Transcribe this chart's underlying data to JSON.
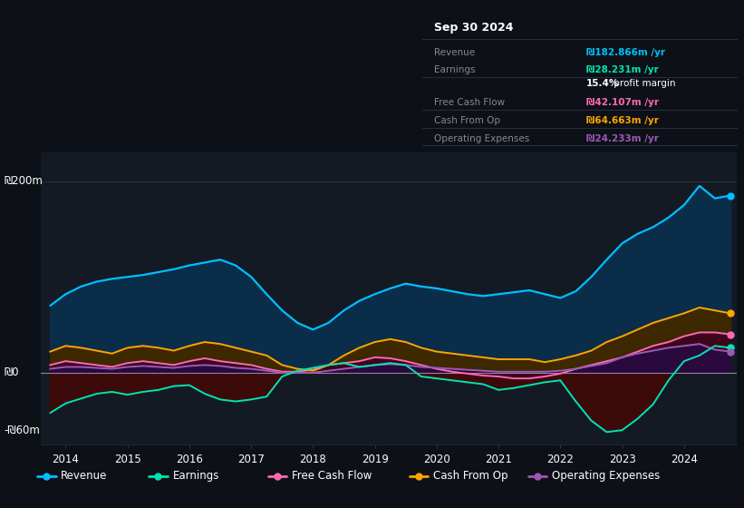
{
  "bg_color": "#0d1117",
  "plot_bg_color": "#131a24",
  "grid_color": "#2a3340",
  "ylim": [
    -75,
    230
  ],
  "xlim": [
    2013.6,
    2024.85
  ],
  "ytick_positions": [
    -60,
    0,
    200
  ],
  "ytick_labels": [
    "-₪60m",
    "₪0",
    "₪200m"
  ],
  "xtick_positions": [
    2014,
    2015,
    2016,
    2017,
    2018,
    2019,
    2020,
    2021,
    2022,
    2023,
    2024
  ],
  "years": [
    2013.75,
    2014.0,
    2014.25,
    2014.5,
    2014.75,
    2015.0,
    2015.25,
    2015.5,
    2015.75,
    2016.0,
    2016.25,
    2016.5,
    2016.75,
    2017.0,
    2017.25,
    2017.5,
    2017.75,
    2018.0,
    2018.25,
    2018.5,
    2018.75,
    2019.0,
    2019.25,
    2019.5,
    2019.75,
    2020.0,
    2020.25,
    2020.5,
    2020.75,
    2021.0,
    2021.25,
    2021.5,
    2021.75,
    2022.0,
    2022.25,
    2022.5,
    2022.75,
    2023.0,
    2023.25,
    2023.5,
    2023.75,
    2024.0,
    2024.25,
    2024.5,
    2024.75
  ],
  "revenue": [
    70,
    82,
    90,
    95,
    98,
    100,
    102,
    105,
    108,
    112,
    115,
    118,
    112,
    100,
    82,
    65,
    52,
    45,
    52,
    65,
    75,
    82,
    88,
    93,
    90,
    88,
    85,
    82,
    80,
    82,
    84,
    86,
    82,
    78,
    85,
    100,
    118,
    135,
    145,
    152,
    162,
    175,
    195,
    182,
    185
  ],
  "earnings": [
    -42,
    -32,
    -27,
    -22,
    -20,
    -23,
    -20,
    -18,
    -14,
    -13,
    -22,
    -28,
    -30,
    -28,
    -25,
    -4,
    2,
    5,
    8,
    10,
    6,
    8,
    10,
    8,
    -4,
    -6,
    -8,
    -10,
    -12,
    -18,
    -16,
    -13,
    -10,
    -8,
    -30,
    -50,
    -62,
    -60,
    -48,
    -33,
    -8,
    12,
    18,
    28,
    26
  ],
  "cash_from_op": [
    22,
    28,
    26,
    23,
    20,
    26,
    28,
    26,
    23,
    28,
    32,
    30,
    26,
    22,
    18,
    8,
    4,
    2,
    8,
    18,
    26,
    32,
    35,
    32,
    26,
    22,
    20,
    18,
    16,
    14,
    14,
    14,
    11,
    14,
    18,
    23,
    32,
    38,
    45,
    52,
    57,
    62,
    68,
    65,
    62
  ],
  "free_cash_flow": [
    8,
    12,
    10,
    8,
    6,
    10,
    12,
    10,
    8,
    12,
    15,
    12,
    10,
    8,
    4,
    1,
    1,
    3,
    8,
    10,
    12,
    16,
    15,
    12,
    8,
    4,
    1,
    -1,
    -3,
    -4,
    -6,
    -6,
    -4,
    -1,
    4,
    8,
    12,
    16,
    22,
    28,
    32,
    38,
    42,
    42,
    40
  ],
  "operating_expenses": [
    4,
    6,
    6,
    5,
    4,
    6,
    7,
    6,
    5,
    7,
    8,
    7,
    5,
    4,
    2,
    0,
    0,
    0,
    2,
    4,
    6,
    8,
    9,
    8,
    6,
    5,
    4,
    3,
    2,
    1,
    1,
    1,
    1,
    2,
    4,
    7,
    10,
    16,
    20,
    23,
    26,
    28,
    30,
    24,
    22
  ],
  "revenue_color": "#00bfff",
  "revenue_fill": "#0a2d4a",
  "earnings_color": "#00e5b0",
  "earnings_neg_fill": "#3d0a0a",
  "earnings_pos_fill": "#004433",
  "cfo_color": "#ffa500",
  "cfo_fill": "#3d2800",
  "fcf_color": "#ff69b4",
  "fcf_fill_pos": "#3d0020",
  "fcf_fill_neg": "#3d0020",
  "opex_color": "#9b59b6",
  "opex_fill": "#2a0a3d",
  "zero_line_color": "#ffffff",
  "h200_line_color": "#2a3340",
  "legend": [
    {
      "label": "Revenue",
      "color": "#00bfff"
    },
    {
      "label": "Earnings",
      "color": "#00e5b0"
    },
    {
      "label": "Free Cash Flow",
      "color": "#ff69b4"
    },
    {
      "label": "Cash From Op",
      "color": "#ffa500"
    },
    {
      "label": "Operating Expenses",
      "color": "#9b59b6"
    }
  ],
  "info_box": {
    "title": "Sep 30 2024",
    "rows": [
      {
        "label": "Revenue",
        "value": "₪182.866m /yr",
        "vcolor": "#00bfff"
      },
      {
        "label": "Earnings",
        "value": "₪28.231m /yr",
        "vcolor": "#00e5b0"
      },
      {
        "label": "",
        "value": "15.4% profit margin",
        "vcolor": "#ffffff"
      },
      {
        "label": "Free Cash Flow",
        "value": "₪42.107m /yr",
        "vcolor": "#ff69b4"
      },
      {
        "label": "Cash From Op",
        "value": "₪64.663m /yr",
        "vcolor": "#ffa500"
      },
      {
        "label": "Operating Expenses",
        "value": "₪24.233m /yr",
        "vcolor": "#9b59b6"
      }
    ]
  }
}
